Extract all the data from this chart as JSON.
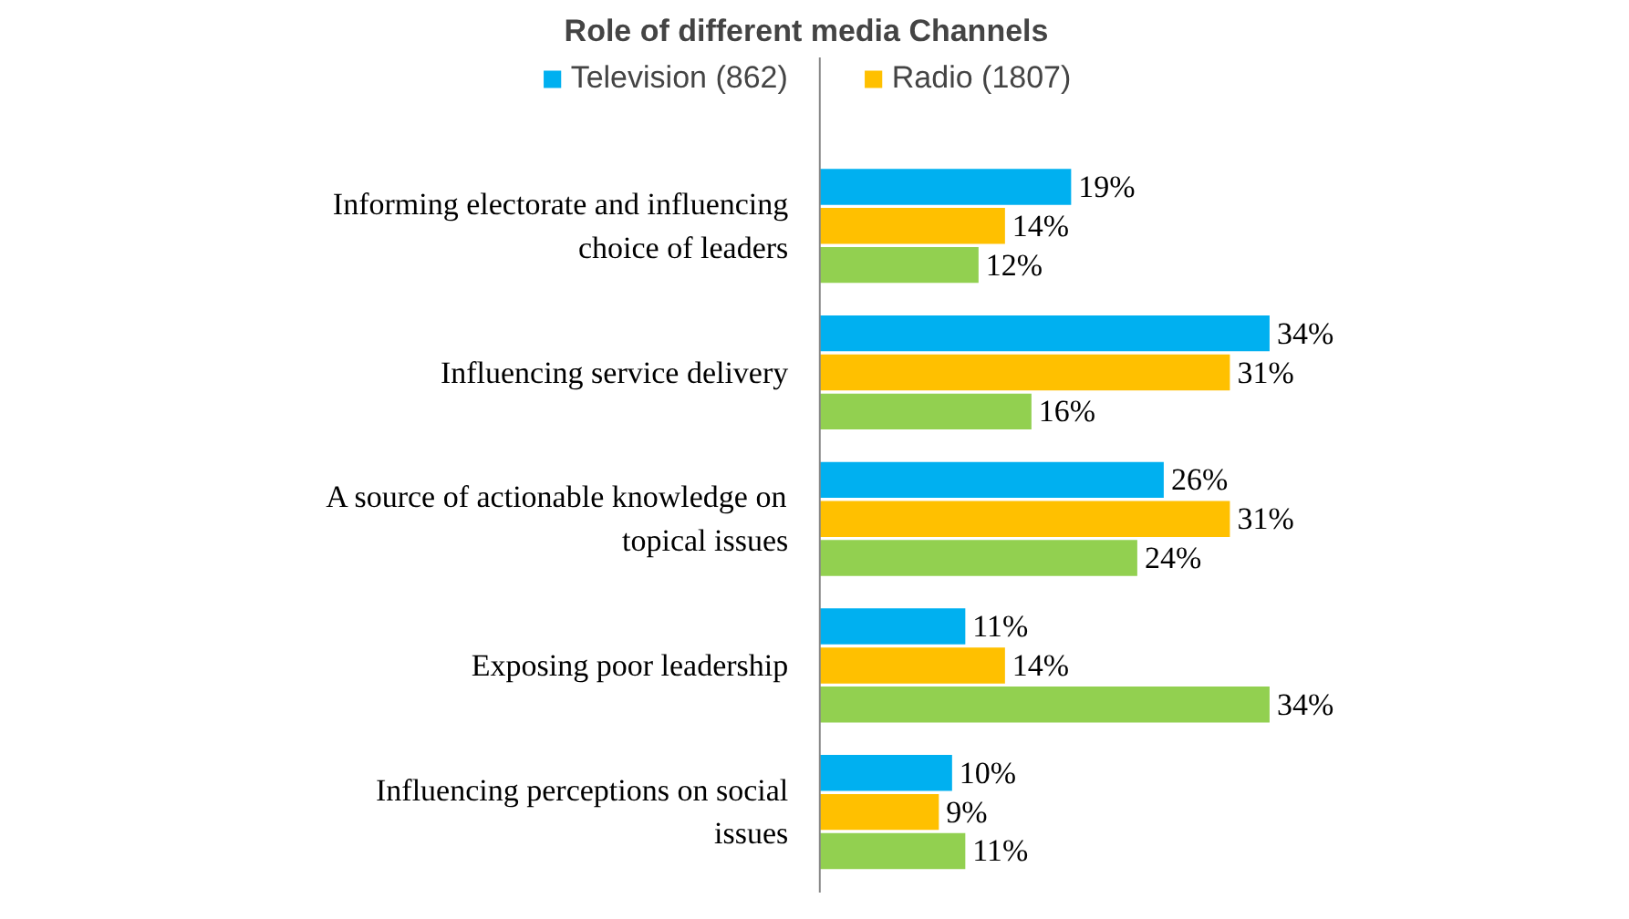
{
  "chart_data": {
    "type": "bar",
    "orientation": "horizontal",
    "title": "Role of different media Channels",
    "categories": [
      "Informing electorate and influencing choice of leaders",
      "Influencing service delivery",
      "A source of actionable knowledge on topical issues",
      "Exposing poor leadership",
      "Influencing perceptions on social issues"
    ],
    "series": [
      {
        "name": "Television (862)",
        "color": "#00b0f0",
        "values": [
          19,
          34,
          26,
          11,
          10
        ],
        "value_labels": [
          "19%",
          "34%",
          "26%",
          "11%",
          "10%"
        ]
      },
      {
        "name": "Radio (1807)",
        "color": "#ffc000",
        "values": [
          14,
          31,
          31,
          14,
          9
        ],
        "value_labels": [
          "14%",
          "31%",
          "31%",
          "14%",
          "9%"
        ]
      },
      {
        "color": "#92d050",
        "values": [
          12,
          16,
          24,
          34,
          11
        ],
        "value_labels": [
          "12%",
          "16%",
          "24%",
          "34%",
          "11%"
        ]
      }
    ],
    "legend": "top",
    "grid": false
  }
}
